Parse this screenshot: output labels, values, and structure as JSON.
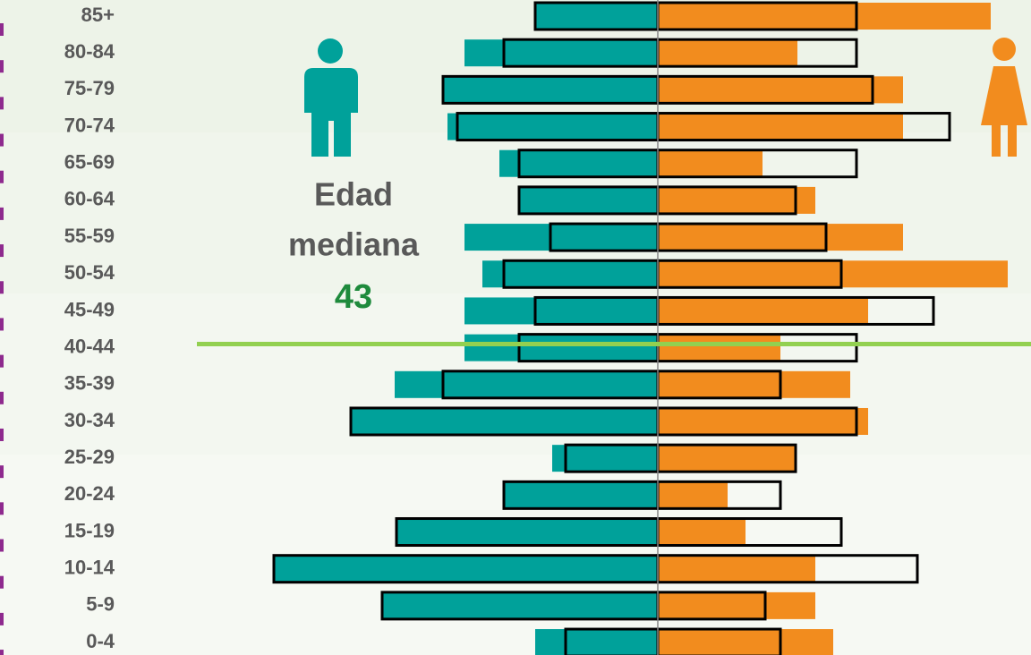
{
  "chart_data": {
    "type": "pyramid",
    "categories": [
      "85+",
      "80-84",
      "75-79",
      "70-74",
      "65-69",
      "60-64",
      "55-59",
      "50-54",
      "45-49",
      "40-44",
      "35-39",
      "30-34",
      "25-29",
      "20-24",
      "15-19",
      "10-14",
      "5-9",
      "0-4"
    ],
    "series": [
      {
        "side": "left",
        "style": "filled",
        "color": "#00a19a",
        "values": [
          137,
          216,
          240,
          235,
          177,
          155,
          216,
          196,
          216,
          216,
          294,
          343,
          118,
          172,
          292,
          429,
          308,
          137
        ]
      },
      {
        "side": "left",
        "style": "outline",
        "color": "#000000",
        "values": [
          137,
          172,
          240,
          224,
          155,
          155,
          120,
          172,
          137,
          155,
          240,
          343,
          103,
          172,
          292,
          429,
          308,
          103
        ]
      },
      {
        "side": "right",
        "style": "filled",
        "color": "#f28c1e",
        "values": [
          372,
          156,
          274,
          274,
          117,
          176,
          274,
          391,
          235,
          137,
          215,
          235,
          154,
          78,
          98,
          176,
          176,
          196
        ]
      },
      {
        "side": "right",
        "style": "outline",
        "color": "#000000",
        "values": [
          222,
          222,
          240,
          326,
          222,
          154,
          188,
          205,
          308,
          222,
          137,
          222,
          154,
          137,
          205,
          290,
          120,
          137
        ]
      }
    ],
    "annotation_lines": [
      "Edad",
      "mediana"
    ],
    "median_age": 43,
    "median_color": "#92d050"
  }
}
